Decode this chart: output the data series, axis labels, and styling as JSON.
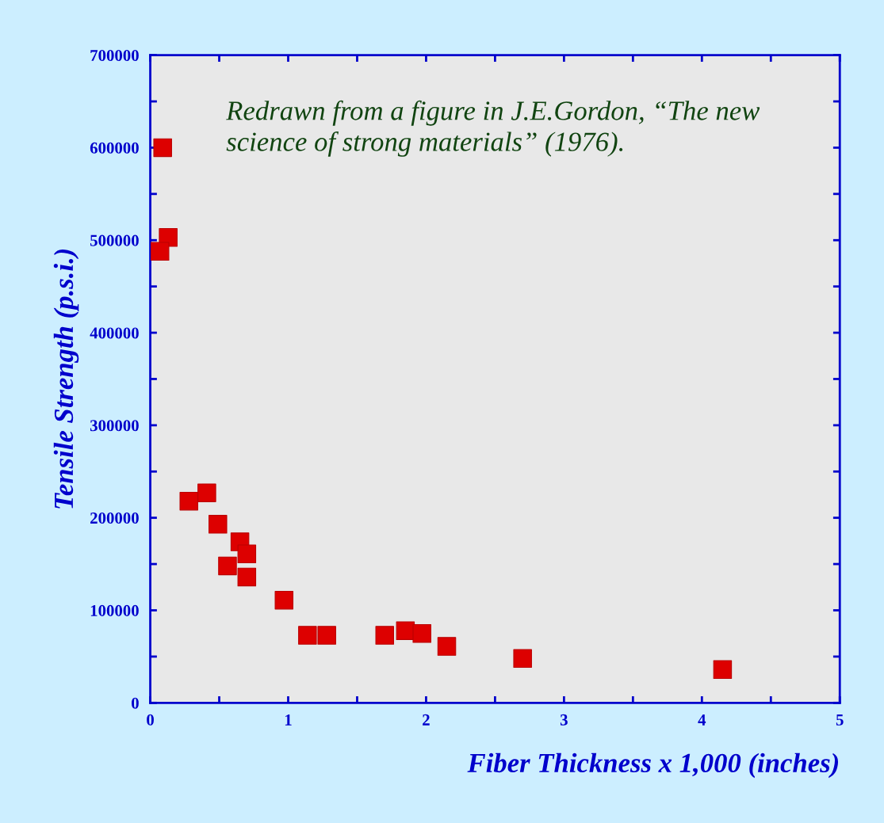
{
  "chart_data": {
    "type": "scatter",
    "xlabel": "Fiber Thickness x 1,000 (inches)",
    "ylabel": "Tensile Strength (p.s.i.)",
    "annotations": [
      "Redrawn from a figure in J.E.Gordon, “The new science of strong materials” (1976)."
    ],
    "x": [
      0.09,
      0.13,
      0.07,
      0.28,
      0.41,
      0.49,
      0.56,
      0.65,
      0.7,
      0.7,
      0.97,
      1.14,
      1.28,
      1.7,
      1.85,
      1.97,
      2.15,
      2.7,
      4.15
    ],
    "series": [
      {
        "color": "#dd0000",
        "values": [
          600000,
          503000,
          488000,
          218000,
          227000,
          193000,
          148000,
          174000,
          161000,
          136000,
          111000,
          73000,
          73000,
          73000,
          78000,
          75000,
          61000,
          48000,
          36000
        ]
      }
    ],
    "marker": "square",
    "xlim": [
      0,
      5
    ],
    "xticks": [
      0,
      {
        "value": 0.5,
        "label": null
      },
      1,
      {
        "value": 1.5,
        "label": null
      },
      2,
      {
        "value": 2.5,
        "label": null
      },
      3,
      {
        "value": 3.5,
        "label": null
      },
      4,
      {
        "value": 4.5,
        "label": null
      },
      5
    ],
    "ylim": [
      0,
      700000
    ],
    "yticks": [
      0,
      {
        "value": 50000,
        "label": null
      },
      100000,
      {
        "value": 150000,
        "label": null
      },
      200000,
      {
        "value": 250000,
        "label": null
      },
      300000,
      {
        "value": 350000,
        "label": null
      },
      400000,
      {
        "value": 450000,
        "label": null
      },
      500000,
      {
        "value": 550000,
        "label": null
      },
      600000,
      {
        "value": 650000,
        "label": null
      },
      700000
    ],
    "grid": false,
    "legend": false
  }
}
